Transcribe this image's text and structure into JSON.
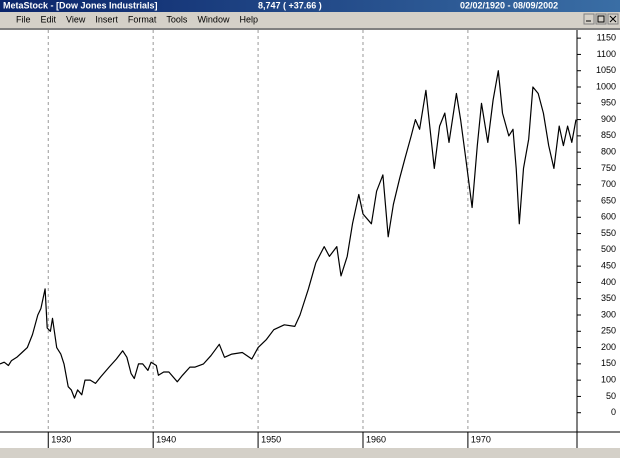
{
  "window": {
    "title": "MetaStock - [Dow Jones Industrials]",
    "quote": "8,747 ( +37.66 )",
    "date_range": "02/02/1920 - 08/09/2002"
  },
  "menu": [
    "File",
    "Edit",
    "View",
    "Insert",
    "Format",
    "Tools",
    "Window",
    "Help"
  ],
  "chart_data": {
    "type": "line",
    "color": "#000000",
    "grid": true,
    "x": [
      1925.4,
      1925.8,
      1926.2,
      1926.5,
      1927,
      1927.5,
      1928,
      1928.5,
      1929,
      1929.3,
      1929.7,
      1929.9,
      1930.2,
      1930.4,
      1930.8,
      1931.2,
      1931.5,
      1931.9,
      1932.2,
      1932.5,
      1932.8,
      1933.2,
      1933.5,
      1934,
      1934.5,
      1935,
      1935.8,
      1936.5,
      1937.1,
      1937.5,
      1937.9,
      1938.2,
      1938.6,
      1939,
      1939.5,
      1939.8,
      1940.3,
      1940.5,
      1941,
      1941.5,
      1942.3,
      1942.8,
      1943.5,
      1944,
      1944.8,
      1945.5,
      1946.3,
      1946.8,
      1947.5,
      1948.5,
      1949.4,
      1950,
      1950.8,
      1951.5,
      1952.5,
      1953.5,
      1954,
      1954.8,
      1955.5,
      1956.3,
      1956.8,
      1957.5,
      1957.9,
      1958.5,
      1959,
      1959.6,
      1960,
      1960.8,
      1961.3,
      1961.9,
      1962.4,
      1962.9,
      1963.5,
      1964,
      1964.6,
      1965,
      1965.4,
      1966,
      1966.8,
      1967.3,
      1967.8,
      1968.2,
      1968.9,
      1969.3,
      1969.8,
      1970.4,
      1970.9,
      1971.3,
      1971.9,
      1972.4,
      1972.9,
      1973.3,
      1973.9,
      1974.3,
      1974.6,
      1974.9,
      1975.3,
      1975.8,
      1976.2,
      1976.7,
      1977.2,
      1977.7,
      1978.2,
      1978.7,
      1979.1,
      1979.5,
      1979.9,
      1980.3
    ],
    "values": [
      150,
      155,
      145,
      160,
      170,
      185,
      200,
      240,
      300,
      320,
      380,
      260,
      250,
      290,
      200,
      180,
      150,
      80,
      70,
      45,
      70,
      55,
      100,
      100,
      90,
      110,
      140,
      165,
      190,
      170,
      120,
      105,
      150,
      150,
      130,
      155,
      145,
      115,
      125,
      125,
      95,
      115,
      140,
      140,
      150,
      175,
      210,
      170,
      180,
      185,
      165,
      200,
      225,
      255,
      270,
      265,
      300,
      380,
      460,
      510,
      480,
      510,
      420,
      480,
      580,
      670,
      610,
      580,
      680,
      730,
      540,
      640,
      720,
      780,
      850,
      900,
      870,
      990,
      750,
      880,
      920,
      830,
      980,
      900,
      780,
      630,
      820,
      950,
      830,
      960,
      1050,
      920,
      850,
      870,
      750,
      580,
      750,
      840,
      1000,
      980,
      920,
      820,
      750,
      880,
      820,
      880,
      830,
      900
    ],
    "xlim": [
      1925.4,
      1980.4
    ],
    "ylim": [
      -50,
      1175
    ],
    "xticks": [
      1930,
      1940,
      1950,
      1960,
      1970
    ],
    "yticks": [
      0,
      50,
      100,
      150,
      200,
      250,
      300,
      350,
      400,
      450,
      500,
      550,
      600,
      650,
      700,
      750,
      800,
      850,
      900,
      950,
      1000,
      1050,
      1100,
      1150
    ]
  }
}
